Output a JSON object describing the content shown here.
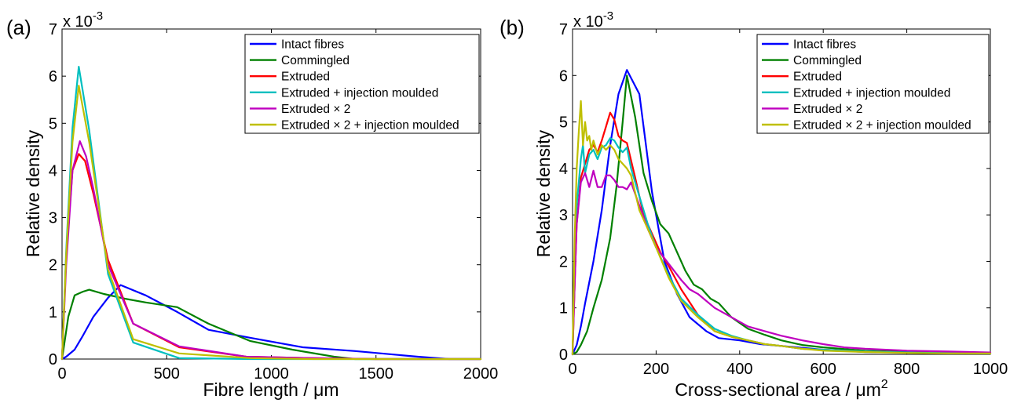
{
  "chart_data": [
    {
      "type": "line",
      "panel_label": "(a)",
      "exponent_label": "x 10",
      "exponent_power": "-3",
      "xlabel": "Fibre length / μm",
      "xlabel_unit_power": "",
      "ylabel": "Relative density",
      "xlim": [
        0,
        2000
      ],
      "ylim": [
        0,
        7
      ],
      "xticks": [
        "0",
        "500",
        "1000",
        "1500",
        "2000"
      ],
      "yticks": [
        "0",
        "1",
        "2",
        "3",
        "4",
        "5",
        "6",
        "7"
      ],
      "legend_position": "top-right",
      "series": [
        {
          "name": "Intact fibres",
          "color": "#0000ff",
          "x": [
            0,
            20,
            60,
            100,
            150,
            220,
            280,
            400,
            550,
            700,
            900,
            1150,
            1400,
            1700,
            1850,
            2000
          ],
          "y": [
            0,
            0.05,
            0.2,
            0.5,
            0.9,
            1.3,
            1.57,
            1.35,
            1.0,
            0.62,
            0.45,
            0.25,
            0.17,
            0.05,
            0,
            0
          ]
        },
        {
          "name": "Commingled",
          "color": "#008000",
          "x": [
            0,
            30,
            60,
            100,
            130,
            200,
            300,
            400,
            550,
            700,
            900,
            1100,
            1300,
            1400,
            2000
          ],
          "y": [
            0,
            0.9,
            1.35,
            1.43,
            1.47,
            1.38,
            1.28,
            1.2,
            1.1,
            0.75,
            0.38,
            0.2,
            0.05,
            0,
            0
          ]
        },
        {
          "name": "Extruded",
          "color": "#ff0000",
          "x": [
            0,
            20,
            50,
            80,
            110,
            150,
            220,
            340,
            560,
            880,
            1200,
            1500,
            2000
          ],
          "y": [
            0,
            2.2,
            4.0,
            4.35,
            4.2,
            3.5,
            2.1,
            0.75,
            0.25,
            0.05,
            0.02,
            0,
            0
          ]
        },
        {
          "name": "Extruded + injection moulded",
          "color": "#00bfbf",
          "x": [
            0,
            20,
            50,
            80,
            130,
            220,
            340,
            560,
            900,
            2000
          ],
          "y": [
            0,
            2.3,
            4.9,
            6.2,
            4.85,
            1.8,
            0.35,
            0.02,
            0,
            0
          ]
        },
        {
          "name": "Extruded × 2",
          "color": "#bf00bf",
          "x": [
            0,
            20,
            50,
            85,
            115,
            150,
            220,
            340,
            560,
            880,
            1200,
            1500,
            2000
          ],
          "y": [
            0,
            2.0,
            4.0,
            4.62,
            4.3,
            3.6,
            2.0,
            0.75,
            0.27,
            0.05,
            0.02,
            0,
            0
          ]
        },
        {
          "name": "Extruded × 2 + injection moulded",
          "color": "#bfbf00",
          "x": [
            0,
            20,
            50,
            80,
            130,
            220,
            340,
            560,
            900,
            1200,
            2000
          ],
          "y": [
            0,
            2.2,
            4.6,
            5.8,
            4.6,
            1.9,
            0.42,
            0.12,
            0.02,
            0,
            0
          ]
        }
      ]
    },
    {
      "type": "line",
      "panel_label": "(b)",
      "exponent_label": "x 10",
      "exponent_power": "-3",
      "xlabel": "Cross-sectional area / μm",
      "xlabel_unit_power": "2",
      "ylabel": "Relative density",
      "xlim": [
        0,
        1000
      ],
      "ylim": [
        0,
        7
      ],
      "xticks": [
        "0",
        "200",
        "400",
        "600",
        "800",
        "1000"
      ],
      "yticks": [
        "0",
        "1",
        "2",
        "3",
        "4",
        "5",
        "6",
        "7"
      ],
      "legend_position": "top-right",
      "series": [
        {
          "name": "Intact fibres",
          "color": "#0000ff",
          "x": [
            0,
            10,
            20,
            30,
            50,
            70,
            90,
            110,
            130,
            160,
            190,
            220,
            250,
            280,
            320,
            350,
            400,
            450,
            500,
            600,
            700,
            800,
            900,
            1000
          ],
          "y": [
            0,
            0.2,
            0.6,
            1.1,
            2.0,
            3.1,
            4.5,
            5.6,
            6.12,
            5.6,
            3.5,
            2.0,
            1.3,
            0.8,
            0.5,
            0.35,
            0.3,
            0.22,
            0.18,
            0.1,
            0.05,
            0.04,
            0.03,
            0.03
          ]
        },
        {
          "name": "Commingled",
          "color": "#008000",
          "x": [
            0,
            10,
            20,
            35,
            50,
            70,
            90,
            105,
            120,
            130,
            150,
            170,
            190,
            210,
            230,
            250,
            270,
            290,
            310,
            330,
            350,
            380,
            420,
            460,
            500,
            550,
            600,
            700,
            800,
            900,
            1000
          ],
          "y": [
            0,
            0.05,
            0.2,
            0.5,
            1.0,
            1.6,
            2.5,
            3.6,
            5.0,
            6.0,
            5.1,
            3.9,
            3.3,
            2.8,
            2.6,
            2.2,
            1.8,
            1.5,
            1.4,
            1.2,
            1.1,
            0.8,
            0.55,
            0.42,
            0.3,
            0.2,
            0.15,
            0.08,
            0.05,
            0.03,
            0.03
          ]
        },
        {
          "name": "Extruded",
          "color": "#ff0000",
          "x": [
            0,
            5,
            10,
            20,
            30,
            40,
            50,
            60,
            70,
            80,
            90,
            100,
            110,
            120,
            130,
            150,
            170,
            190,
            210,
            230,
            260,
            300,
            340,
            380,
            420,
            460,
            500,
            550,
            600,
            700,
            800,
            900,
            1000
          ],
          "y": [
            0,
            1.5,
            2.8,
            3.8,
            4.1,
            4.4,
            4.5,
            4.35,
            4.6,
            4.9,
            5.2,
            5.05,
            4.7,
            4.6,
            4.55,
            3.8,
            3.0,
            2.6,
            2.2,
            1.9,
            1.4,
            0.85,
            0.5,
            0.38,
            0.3,
            0.22,
            0.18,
            0.12,
            0.1,
            0.06,
            0.04,
            0.03,
            0.02
          ]
        },
        {
          "name": "Extruded + injection moulded",
          "color": "#00bfbf",
          "x": [
            0,
            5,
            10,
            20,
            25,
            30,
            40,
            50,
            60,
            70,
            80,
            90,
            100,
            110,
            120,
            130,
            140,
            160,
            180,
            200,
            230,
            260,
            300,
            340,
            380,
            420,
            460,
            500,
            550,
            600,
            700,
            800,
            900,
            1000
          ],
          "y": [
            0,
            1.8,
            3.2,
            4.2,
            4.5,
            3.9,
            4.3,
            4.4,
            4.2,
            4.45,
            4.5,
            4.65,
            4.6,
            4.45,
            4.35,
            4.45,
            4.0,
            3.4,
            2.8,
            2.3,
            1.7,
            1.2,
            0.85,
            0.55,
            0.4,
            0.3,
            0.22,
            0.18,
            0.12,
            0.1,
            0.06,
            0.04,
            0.03,
            0.02
          ]
        },
        {
          "name": "Extruded × 2",
          "color": "#bf00bf",
          "x": [
            0,
            5,
            10,
            20,
            30,
            40,
            50,
            60,
            70,
            80,
            90,
            100,
            110,
            120,
            130,
            140,
            160,
            180,
            200,
            230,
            260,
            280,
            300,
            340,
            380,
            420,
            460,
            500,
            550,
            600,
            650,
            700,
            800,
            900,
            1000
          ],
          "y": [
            0,
            1.5,
            2.8,
            3.7,
            3.9,
            3.6,
            3.95,
            3.6,
            3.6,
            3.85,
            3.85,
            3.75,
            3.6,
            3.6,
            3.55,
            3.7,
            3.2,
            2.7,
            2.3,
            1.95,
            1.6,
            1.4,
            1.3,
            1.0,
            0.8,
            0.6,
            0.5,
            0.4,
            0.3,
            0.22,
            0.15,
            0.12,
            0.08,
            0.06,
            0.04
          ]
        },
        {
          "name": "Extruded × 2 + injection moulded",
          "color": "#bfbf00",
          "x": [
            0,
            5,
            10,
            15,
            20,
            25,
            30,
            35,
            40,
            45,
            50,
            60,
            70,
            80,
            90,
            100,
            110,
            120,
            130,
            140,
            160,
            180,
            200,
            230,
            260,
            300,
            340,
            380,
            420,
            460,
            500,
            550,
            600,
            700,
            800,
            900,
            1000
          ],
          "y": [
            0,
            2.5,
            4.0,
            4.8,
            5.45,
            4.5,
            5.0,
            4.6,
            4.7,
            4.4,
            4.6,
            4.3,
            4.5,
            4.4,
            4.5,
            4.4,
            4.2,
            4.1,
            4.0,
            3.85,
            3.1,
            2.7,
            2.3,
            1.65,
            1.15,
            0.8,
            0.5,
            0.38,
            0.3,
            0.22,
            0.18,
            0.12,
            0.08,
            0.05,
            0.03,
            0.02,
            0.02
          ]
        }
      ]
    }
  ]
}
